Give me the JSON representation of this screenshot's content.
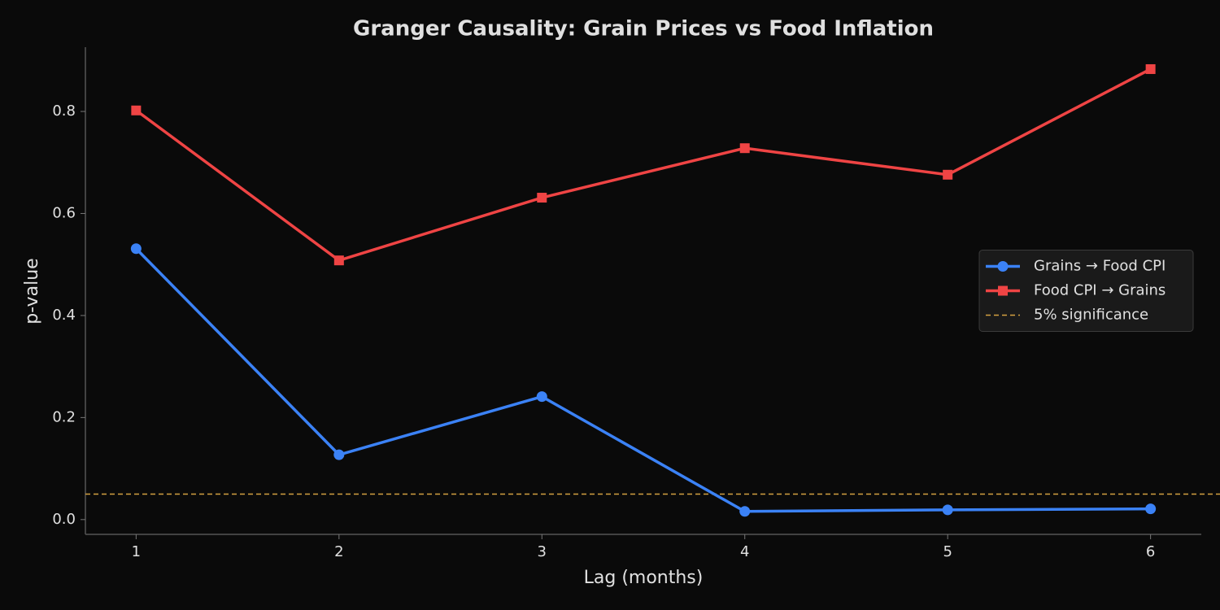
{
  "chart_data": {
    "type": "line",
    "title": "Granger Causality: Grain Prices vs Food Inflation",
    "x_label": "Lag (months)",
    "y_label": "p-value",
    "x": [
      1,
      2,
      3,
      4,
      5,
      6
    ],
    "series": [
      {
        "name": "Grains → Food CPI",
        "color": "#3b82f6",
        "marker": "circle",
        "values": [
          0.531,
          0.127,
          0.241,
          0.016,
          0.019,
          0.021
        ]
      },
      {
        "name": "Food CPI → Grains",
        "color": "#ef4444",
        "marker": "square",
        "values": [
          0.802,
          0.508,
          0.631,
          0.728,
          0.676,
          0.883
        ]
      }
    ],
    "reference_line": {
      "name": "5% significance",
      "value": 0.05,
      "color": "#d4a040"
    },
    "xlim": [
      0.75,
      6.25
    ],
    "xticks": [
      1,
      2,
      3,
      4,
      5,
      6
    ],
    "ylim": [
      -0.029,
      0.926
    ],
    "yticks": [
      {
        "value": 0,
        "label": "0.0"
      },
      0.2,
      0.4,
      0.6,
      0.8
    ],
    "legend": "center right",
    "grid": false
  }
}
